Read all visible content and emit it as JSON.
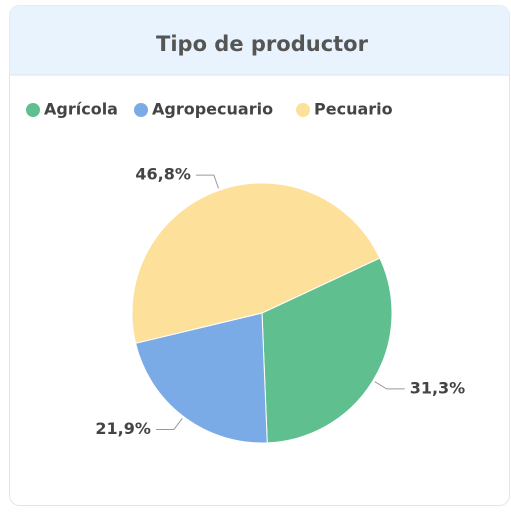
{
  "chart_data": {
    "type": "pie",
    "title": "Tipo de productor",
    "categories": [
      "Agrícola",
      "Agropecuario",
      "Pecuario"
    ],
    "values": [
      31.3,
      21.9,
      46.8
    ],
    "value_labels": [
      "31,3%",
      "21,9%",
      "46,8%"
    ],
    "colors": [
      "#5fbf8f",
      "#7aabe6",
      "#fde19a"
    ]
  }
}
